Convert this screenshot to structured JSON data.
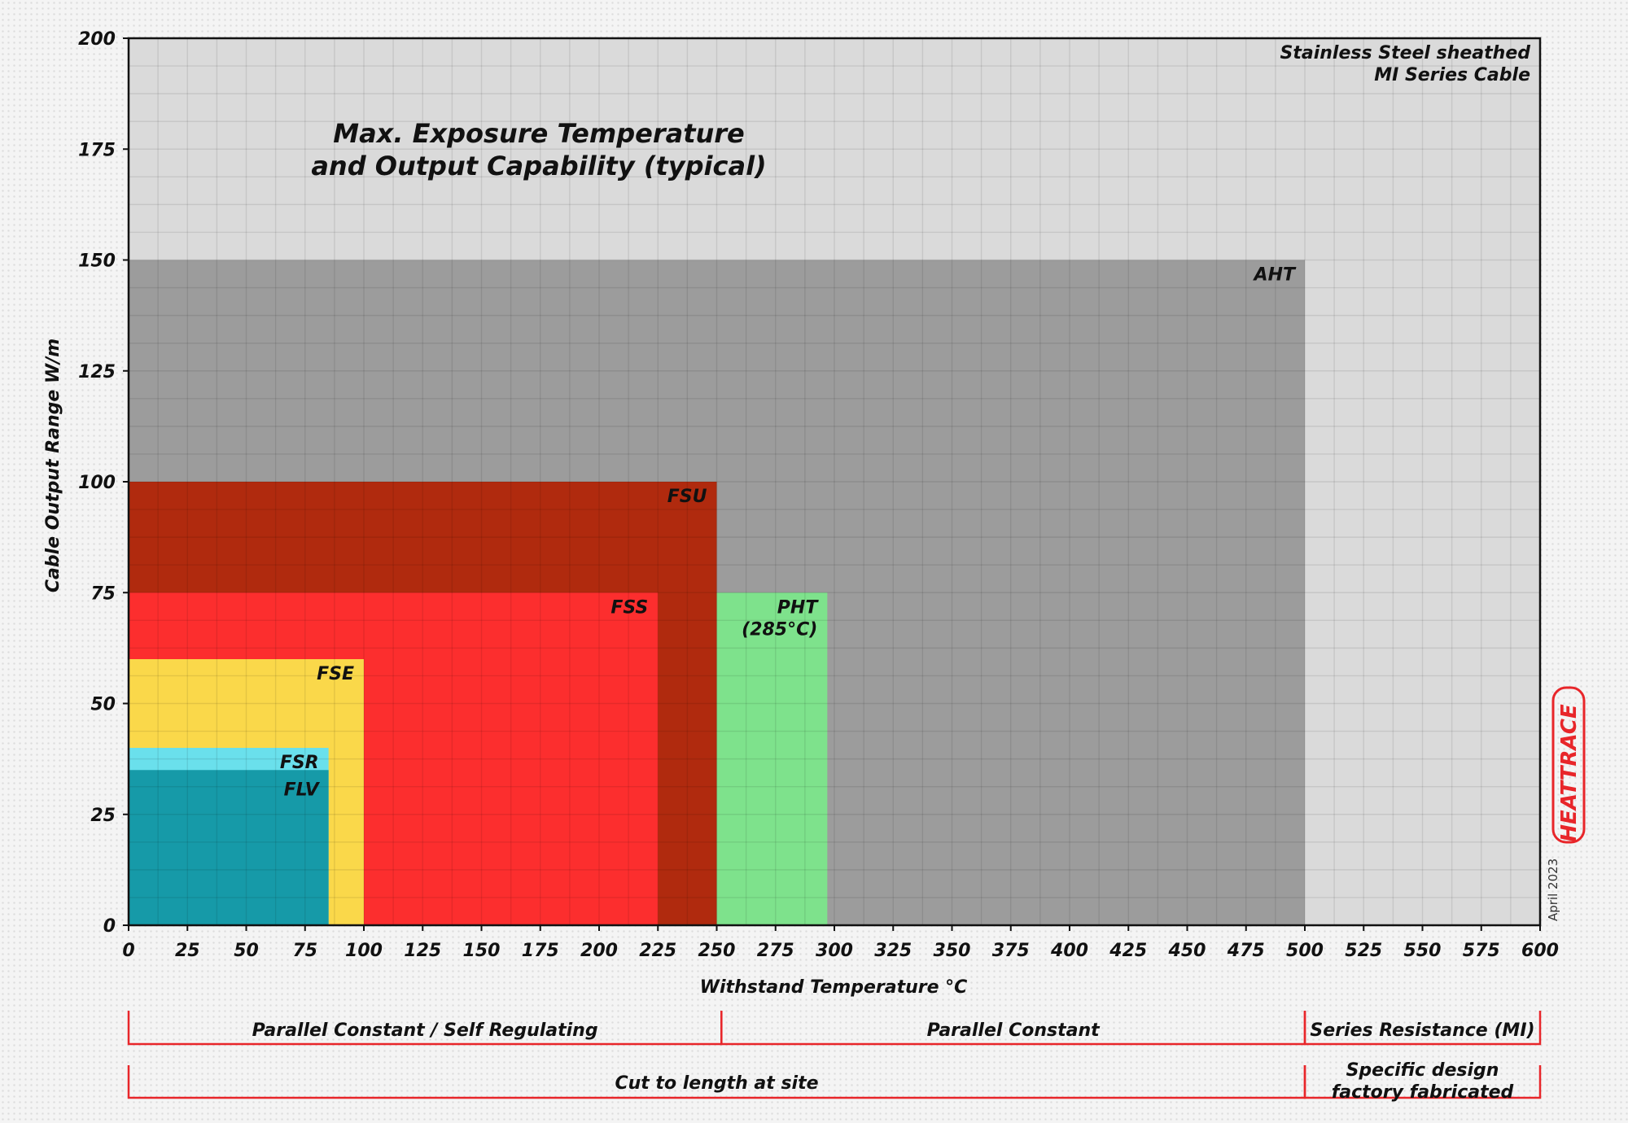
{
  "chart_data": {
    "type": "bar",
    "title": "Max. Exposure Temperature and Output Capability (typical)",
    "title_lines": [
      "Max. Exposure Temperature",
      "and Output Capability (typical)"
    ],
    "xlabel": "Withstand Temperature °C",
    "ylabel": "Cable Output Range W/m",
    "xlim": [
      0,
      600
    ],
    "ylim": [
      0,
      200
    ],
    "x_ticks": [
      0,
      25,
      50,
      75,
      100,
      125,
      150,
      175,
      200,
      225,
      250,
      275,
      300,
      325,
      350,
      375,
      400,
      425,
      450,
      475,
      500,
      525,
      550,
      575,
      600
    ],
    "y_ticks": [
      0,
      25,
      50,
      75,
      100,
      125,
      150,
      175,
      200
    ],
    "grid": true,
    "series": [
      {
        "name": "Stainless Steel sheathed MI Series Cable",
        "label_lines": [
          "Stainless Steel sheathed",
          "MI Series Cable"
        ],
        "x": [
          0,
          600
        ],
        "y": [
          0,
          200
        ],
        "color": "#dadada"
      },
      {
        "name": "AHT",
        "label_lines": [
          "AHT"
        ],
        "x": [
          0,
          500
        ],
        "y": [
          0,
          150
        ],
        "color": "#9c9c9c"
      },
      {
        "name": "FSU",
        "label_lines": [
          "FSU"
        ],
        "x": [
          0,
          250
        ],
        "y": [
          0,
          100
        ],
        "color": "#b02a0e"
      },
      {
        "name": "FSS",
        "label_lines": [
          "FSS"
        ],
        "x": [
          0,
          225
        ],
        "y": [
          0,
          75
        ],
        "color": "#fc2e2e"
      },
      {
        "name": "PHT",
        "label_lines": [
          "PHT",
          "(285°C)"
        ],
        "x": [
          250,
          297
        ],
        "y": [
          0,
          75
        ],
        "color": "#7ee28c"
      },
      {
        "name": "FSE",
        "label_lines": [
          "FSE"
        ],
        "x": [
          0,
          100
        ],
        "y": [
          0,
          60
        ],
        "color": "#fad84a"
      },
      {
        "name": "FSR",
        "label_lines": [
          "FSR"
        ],
        "x": [
          0,
          85
        ],
        "y": [
          0,
          40
        ],
        "color": "#6ae0ec"
      },
      {
        "name": "FLV",
        "label_lines": [
          "FLV"
        ],
        "x": [
          0,
          85
        ],
        "y": [
          0,
          35
        ],
        "color": "#169aa8"
      }
    ],
    "categories_rows": [
      [
        {
          "label": "Parallel Constant / Self Regulating",
          "x": [
            0,
            252
          ]
        },
        {
          "label": "Parallel Constant",
          "x": [
            252,
            500
          ]
        },
        {
          "label": "Series Resistance (MI)",
          "x": [
            500,
            600
          ]
        }
      ],
      [
        {
          "label_lines": [
            "Cut to length at site"
          ],
          "x": [
            0,
            500
          ]
        },
        {
          "label_lines": [
            "Specific design",
            "factory fabricated"
          ],
          "x": [
            500,
            600
          ]
        }
      ]
    ]
  },
  "brand": {
    "logo_text": "HEATTRACE",
    "date": "April 2023",
    "accent": "#e8262a"
  }
}
